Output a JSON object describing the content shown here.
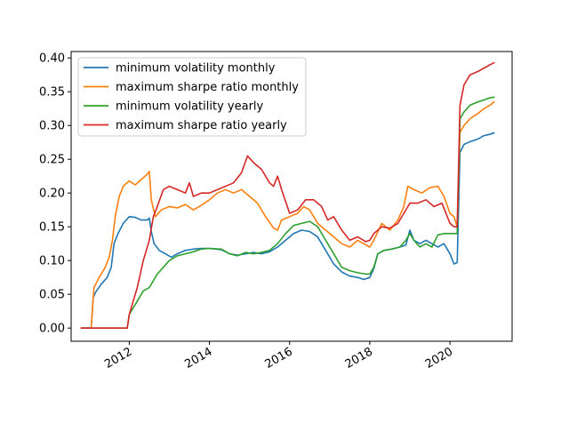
{
  "chart_data": {
    "type": "line",
    "title": "",
    "xlabel": "",
    "ylabel": "",
    "xlim": [
      2010.55,
      2021.55
    ],
    "ylim": [
      -0.0195,
      0.4095
    ],
    "x_ticks": [
      {
        "value": 2012,
        "label": "2012"
      },
      {
        "value": 2014,
        "label": "2014"
      },
      {
        "value": 2016,
        "label": "2016"
      },
      {
        "value": 2018,
        "label": "2018"
      },
      {
        "value": 2020,
        "label": "2020"
      }
    ],
    "y_ticks": [
      {
        "value": 0.0,
        "label": "0.00"
      },
      {
        "value": 0.05,
        "label": "0.05"
      },
      {
        "value": 0.1,
        "label": "0.10"
      },
      {
        "value": 0.15,
        "label": "0.15"
      },
      {
        "value": 0.2,
        "label": "0.20"
      },
      {
        "value": 0.25,
        "label": "0.25"
      },
      {
        "value": 0.3,
        "label": "0.30"
      },
      {
        "value": 0.35,
        "label": "0.35"
      },
      {
        "value": 0.4,
        "label": "0.40"
      }
    ],
    "grid": false,
    "legend_position": "top-left",
    "series": [
      {
        "name": "minimum volatility monthly",
        "color": "#1f77b4",
        "points": [
          [
            2010.8,
            0.0
          ],
          [
            2011.05,
            0.0
          ],
          [
            2011.1,
            0.045
          ],
          [
            2011.15,
            0.052
          ],
          [
            2011.3,
            0.065
          ],
          [
            2011.45,
            0.075
          ],
          [
            2011.55,
            0.09
          ],
          [
            2011.62,
            0.125
          ],
          [
            2011.72,
            0.14
          ],
          [
            2011.85,
            0.155
          ],
          [
            2012.0,
            0.165
          ],
          [
            2012.15,
            0.164
          ],
          [
            2012.3,
            0.16
          ],
          [
            2012.45,
            0.16
          ],
          [
            2012.5,
            0.163
          ],
          [
            2012.55,
            0.143
          ],
          [
            2012.62,
            0.125
          ],
          [
            2012.75,
            0.115
          ],
          [
            2012.9,
            0.11
          ],
          [
            2013.05,
            0.105
          ],
          [
            2013.2,
            0.11
          ],
          [
            2013.4,
            0.115
          ],
          [
            2013.6,
            0.117
          ],
          [
            2013.8,
            0.118
          ],
          [
            2014.0,
            0.118
          ],
          [
            2014.3,
            0.116
          ],
          [
            2014.5,
            0.11
          ],
          [
            2014.7,
            0.108
          ],
          [
            2014.9,
            0.11
          ],
          [
            2015.1,
            0.112
          ],
          [
            2015.3,
            0.11
          ],
          [
            2015.5,
            0.113
          ],
          [
            2015.7,
            0.12
          ],
          [
            2015.9,
            0.13
          ],
          [
            2016.1,
            0.14
          ],
          [
            2016.3,
            0.145
          ],
          [
            2016.5,
            0.143
          ],
          [
            2016.7,
            0.135
          ],
          [
            2016.9,
            0.115
          ],
          [
            2017.1,
            0.095
          ],
          [
            2017.3,
            0.083
          ],
          [
            2017.5,
            0.077
          ],
          [
            2017.7,
            0.075
          ],
          [
            2017.85,
            0.072
          ],
          [
            2018.0,
            0.075
          ],
          [
            2018.1,
            0.088
          ],
          [
            2018.2,
            0.11
          ],
          [
            2018.35,
            0.115
          ],
          [
            2018.55,
            0.117
          ],
          [
            2018.75,
            0.12
          ],
          [
            2018.9,
            0.123
          ],
          [
            2019.0,
            0.145
          ],
          [
            2019.1,
            0.13
          ],
          [
            2019.25,
            0.125
          ],
          [
            2019.4,
            0.13
          ],
          [
            2019.55,
            0.125
          ],
          [
            2019.7,
            0.12
          ],
          [
            2019.85,
            0.125
          ],
          [
            2020.0,
            0.11
          ],
          [
            2020.1,
            0.095
          ],
          [
            2020.18,
            0.097
          ],
          [
            2020.25,
            0.26
          ],
          [
            2020.35,
            0.272
          ],
          [
            2020.5,
            0.276
          ],
          [
            2020.7,
            0.28
          ],
          [
            2020.85,
            0.285
          ],
          [
            2021.0,
            0.287
          ],
          [
            2021.1,
            0.289
          ]
        ]
      },
      {
        "name": "maximum sharpe ratio monthly",
        "color": "#ff7f0e",
        "points": [
          [
            2010.8,
            0.0
          ],
          [
            2011.05,
            0.0
          ],
          [
            2011.12,
            0.06
          ],
          [
            2011.25,
            0.075
          ],
          [
            2011.4,
            0.09
          ],
          [
            2011.5,
            0.105
          ],
          [
            2011.58,
            0.13
          ],
          [
            2011.65,
            0.165
          ],
          [
            2011.75,
            0.195
          ],
          [
            2011.85,
            0.21
          ],
          [
            2012.0,
            0.218
          ],
          [
            2012.15,
            0.212
          ],
          [
            2012.3,
            0.22
          ],
          [
            2012.45,
            0.228
          ],
          [
            2012.5,
            0.232
          ],
          [
            2012.55,
            0.19
          ],
          [
            2012.65,
            0.165
          ],
          [
            2012.8,
            0.175
          ],
          [
            2013.0,
            0.18
          ],
          [
            2013.2,
            0.178
          ],
          [
            2013.4,
            0.183
          ],
          [
            2013.6,
            0.175
          ],
          [
            2013.8,
            0.182
          ],
          [
            2014.0,
            0.19
          ],
          [
            2014.2,
            0.2
          ],
          [
            2014.4,
            0.205
          ],
          [
            2014.6,
            0.2
          ],
          [
            2014.8,
            0.205
          ],
          [
            2015.0,
            0.195
          ],
          [
            2015.2,
            0.185
          ],
          [
            2015.4,
            0.165
          ],
          [
            2015.6,
            0.148
          ],
          [
            2015.7,
            0.145
          ],
          [
            2015.8,
            0.16
          ],
          [
            2016.0,
            0.165
          ],
          [
            2016.2,
            0.17
          ],
          [
            2016.35,
            0.18
          ],
          [
            2016.5,
            0.175
          ],
          [
            2016.7,
            0.155
          ],
          [
            2016.9,
            0.145
          ],
          [
            2017.1,
            0.135
          ],
          [
            2017.3,
            0.125
          ],
          [
            2017.5,
            0.12
          ],
          [
            2017.7,
            0.13
          ],
          [
            2017.85,
            0.125
          ],
          [
            2018.0,
            0.12
          ],
          [
            2018.1,
            0.13
          ],
          [
            2018.3,
            0.155
          ],
          [
            2018.5,
            0.145
          ],
          [
            2018.7,
            0.16
          ],
          [
            2018.85,
            0.18
          ],
          [
            2018.95,
            0.21
          ],
          [
            2019.1,
            0.205
          ],
          [
            2019.3,
            0.2
          ],
          [
            2019.5,
            0.208
          ],
          [
            2019.7,
            0.21
          ],
          [
            2019.85,
            0.195
          ],
          [
            2020.0,
            0.17
          ],
          [
            2020.1,
            0.165
          ],
          [
            2020.18,
            0.15
          ],
          [
            2020.25,
            0.29
          ],
          [
            2020.35,
            0.3
          ],
          [
            2020.5,
            0.31
          ],
          [
            2020.7,
            0.318
          ],
          [
            2020.85,
            0.325
          ],
          [
            2021.0,
            0.33
          ],
          [
            2021.1,
            0.335
          ]
        ]
      },
      {
        "name": "minimum volatility yearly",
        "color": "#2ca02c",
        "points": [
          [
            2010.8,
            0.0
          ],
          [
            2011.95,
            0.0
          ],
          [
            2012.0,
            0.02
          ],
          [
            2012.1,
            0.03
          ],
          [
            2012.2,
            0.04
          ],
          [
            2012.35,
            0.055
          ],
          [
            2012.5,
            0.06
          ],
          [
            2012.6,
            0.07
          ],
          [
            2012.7,
            0.08
          ],
          [
            2012.85,
            0.09
          ],
          [
            2013.0,
            0.1
          ],
          [
            2013.2,
            0.107
          ],
          [
            2013.4,
            0.11
          ],
          [
            2013.6,
            0.113
          ],
          [
            2013.8,
            0.117
          ],
          [
            2014.0,
            0.118
          ],
          [
            2014.3,
            0.117
          ],
          [
            2014.5,
            0.11
          ],
          [
            2014.7,
            0.107
          ],
          [
            2014.9,
            0.112
          ],
          [
            2015.1,
            0.11
          ],
          [
            2015.3,
            0.112
          ],
          [
            2015.5,
            0.115
          ],
          [
            2015.7,
            0.125
          ],
          [
            2015.9,
            0.14
          ],
          [
            2016.1,
            0.152
          ],
          [
            2016.3,
            0.155
          ],
          [
            2016.5,
            0.158
          ],
          [
            2016.7,
            0.15
          ],
          [
            2016.9,
            0.13
          ],
          [
            2017.1,
            0.11
          ],
          [
            2017.3,
            0.09
          ],
          [
            2017.5,
            0.085
          ],
          [
            2017.7,
            0.082
          ],
          [
            2017.9,
            0.08
          ],
          [
            2018.0,
            0.08
          ],
          [
            2018.1,
            0.09
          ],
          [
            2018.2,
            0.11
          ],
          [
            2018.35,
            0.115
          ],
          [
            2018.55,
            0.117
          ],
          [
            2018.75,
            0.12
          ],
          [
            2018.9,
            0.13
          ],
          [
            2019.0,
            0.14
          ],
          [
            2019.1,
            0.13
          ],
          [
            2019.25,
            0.12
          ],
          [
            2019.4,
            0.125
          ],
          [
            2019.55,
            0.12
          ],
          [
            2019.7,
            0.138
          ],
          [
            2019.85,
            0.14
          ],
          [
            2020.0,
            0.14
          ],
          [
            2020.1,
            0.14
          ],
          [
            2020.18,
            0.14
          ],
          [
            2020.25,
            0.31
          ],
          [
            2020.35,
            0.32
          ],
          [
            2020.5,
            0.33
          ],
          [
            2020.7,
            0.335
          ],
          [
            2020.85,
            0.338
          ],
          [
            2021.0,
            0.341
          ],
          [
            2021.1,
            0.342
          ]
        ]
      },
      {
        "name": "maximum sharpe ratio yearly",
        "color": "#d62728",
        "points": [
          [
            2010.8,
            0.0
          ],
          [
            2011.95,
            0.0
          ],
          [
            2012.0,
            0.02
          ],
          [
            2012.1,
            0.04
          ],
          [
            2012.2,
            0.06
          ],
          [
            2012.35,
            0.1
          ],
          [
            2012.5,
            0.13
          ],
          [
            2012.6,
            0.165
          ],
          [
            2012.7,
            0.18
          ],
          [
            2012.85,
            0.205
          ],
          [
            2013.0,
            0.21
          ],
          [
            2013.2,
            0.205
          ],
          [
            2013.4,
            0.2
          ],
          [
            2013.5,
            0.215
          ],
          [
            2013.6,
            0.195
          ],
          [
            2013.8,
            0.2
          ],
          [
            2014.0,
            0.2
          ],
          [
            2014.2,
            0.205
          ],
          [
            2014.4,
            0.21
          ],
          [
            2014.6,
            0.215
          ],
          [
            2014.8,
            0.23
          ],
          [
            2014.95,
            0.255
          ],
          [
            2015.1,
            0.245
          ],
          [
            2015.3,
            0.235
          ],
          [
            2015.5,
            0.215
          ],
          [
            2015.6,
            0.21
          ],
          [
            2015.7,
            0.225
          ],
          [
            2015.8,
            0.205
          ],
          [
            2016.0,
            0.17
          ],
          [
            2016.2,
            0.175
          ],
          [
            2016.4,
            0.19
          ],
          [
            2016.6,
            0.19
          ],
          [
            2016.8,
            0.18
          ],
          [
            2016.95,
            0.16
          ],
          [
            2017.1,
            0.165
          ],
          [
            2017.3,
            0.145
          ],
          [
            2017.5,
            0.13
          ],
          [
            2017.7,
            0.135
          ],
          [
            2017.9,
            0.128
          ],
          [
            2018.0,
            0.13
          ],
          [
            2018.1,
            0.14
          ],
          [
            2018.3,
            0.15
          ],
          [
            2018.5,
            0.148
          ],
          [
            2018.7,
            0.155
          ],
          [
            2018.85,
            0.17
          ],
          [
            2019.0,
            0.185
          ],
          [
            2019.2,
            0.185
          ],
          [
            2019.4,
            0.19
          ],
          [
            2019.6,
            0.18
          ],
          [
            2019.8,
            0.185
          ],
          [
            2019.9,
            0.17
          ],
          [
            2020.0,
            0.155
          ],
          [
            2020.1,
            0.15
          ],
          [
            2020.18,
            0.15
          ],
          [
            2020.25,
            0.33
          ],
          [
            2020.35,
            0.36
          ],
          [
            2020.5,
            0.375
          ],
          [
            2020.7,
            0.38
          ],
          [
            2020.85,
            0.385
          ],
          [
            2021.0,
            0.39
          ],
          [
            2021.1,
            0.393
          ]
        ]
      }
    ]
  }
}
